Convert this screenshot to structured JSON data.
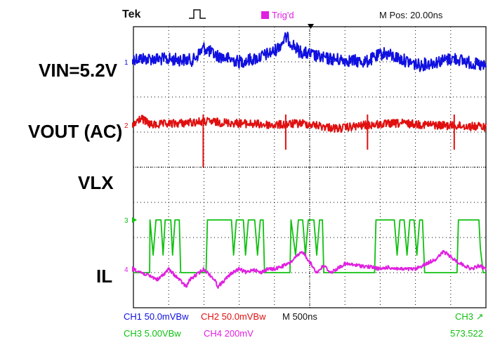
{
  "header": {
    "brand": "Tek",
    "trigger_status": "Trig'd",
    "m_pos": "M Pos: 20.00ns"
  },
  "labels": {
    "vin": "VIN=5.2V",
    "vout": "VOUT (AC)",
    "vlx": "VLX",
    "il": "IL"
  },
  "footer": {
    "ch1": "CH1  50.0mVBw",
    "ch2": "CH2  50.0mVBw",
    "timebase": "M 500ns",
    "trig_src": "CH3 ↗",
    "ch3": "CH3  5.00VBw",
    "ch4": "CH4  200mV",
    "trig_value": "573.522"
  },
  "colors": {
    "ch1": "#1010e0",
    "ch2": "#e01010",
    "ch3": "#10c010",
    "ch4": "#e020e0",
    "grid": "#000000"
  },
  "chart_data": {
    "type": "line",
    "x_unit": "ns",
    "xlim": [
      0,
      5000
    ],
    "grid": true,
    "series": [
      {
        "name": "CH1",
        "color": "#1010e0",
        "baseline_div": -3.0,
        "noise": 0.18,
        "points": [
          [
            0,
            0.1
          ],
          [
            850,
            0.05
          ],
          [
            1000,
            0.4
          ],
          [
            1150,
            0.2
          ],
          [
            1500,
            0.0
          ],
          [
            1750,
            0.1
          ],
          [
            2000,
            0.3
          ],
          [
            2170,
            0.7
          ],
          [
            2350,
            0.3
          ],
          [
            2700,
            0.1
          ],
          [
            3300,
            0.0
          ],
          [
            3550,
            0.25
          ],
          [
            4050,
            -0.1
          ],
          [
            4550,
            0.1
          ],
          [
            5000,
            -0.15
          ]
        ]
      },
      {
        "name": "CH2",
        "color": "#e01010",
        "baseline_div": -1.2,
        "noise": 0.12,
        "points": [
          [
            0,
            0.0
          ],
          [
            100,
            0.2
          ],
          [
            250,
            0.0
          ],
          [
            1000,
            0.1
          ],
          [
            2000,
            0.0
          ],
          [
            2400,
            0.05
          ],
          [
            2900,
            -0.1
          ],
          [
            3300,
            0.0
          ],
          [
            3800,
            0.05
          ],
          [
            4300,
            0.0
          ],
          [
            5000,
            -0.05
          ]
        ],
        "spikes": [
          [
            990,
            -1.2
          ],
          [
            2160,
            -0.7
          ],
          [
            3320,
            -0.7
          ],
          [
            4550,
            -0.7
          ]
        ]
      },
      {
        "name": "CH3",
        "color": "#10c010",
        "baseline_div": 1.5,
        "points": [
          [
            0,
            -1.5
          ],
          [
            230,
            -1.5
          ],
          [
            235,
            0
          ],
          [
            280,
            -1.0
          ],
          [
            320,
            0
          ],
          [
            390,
            0
          ],
          [
            420,
            -1.0
          ],
          [
            450,
            0
          ],
          [
            530,
            0
          ],
          [
            555,
            -1.0
          ],
          [
            590,
            0
          ],
          [
            650,
            0
          ],
          [
            670,
            -1.5
          ],
          [
            1030,
            -1.5
          ],
          [
            1050,
            0
          ],
          [
            1390,
            0
          ],
          [
            1420,
            -1.0
          ],
          [
            1460,
            0
          ],
          [
            1560,
            0
          ],
          [
            1590,
            -1.0
          ],
          [
            1630,
            0
          ],
          [
            1720,
            0
          ],
          [
            1760,
            -1.0
          ],
          [
            1800,
            0
          ],
          [
            1840,
            0
          ],
          [
            1860,
            -1.5
          ],
          [
            2220,
            -1.5
          ],
          [
            2235,
            0
          ],
          [
            2300,
            -1.0
          ],
          [
            2340,
            0
          ],
          [
            2400,
            0
          ],
          [
            2440,
            -1.0
          ],
          [
            2480,
            0
          ],
          [
            2560,
            0
          ],
          [
            2600,
            -1.0
          ],
          [
            2640,
            0
          ],
          [
            2680,
            0
          ],
          [
            2700,
            -1.5
          ],
          [
            3420,
            -1.5
          ],
          [
            3440,
            0
          ],
          [
            3700,
            0
          ],
          [
            3740,
            -1.0
          ],
          [
            3780,
            0
          ],
          [
            3840,
            0
          ],
          [
            3880,
            -1.0
          ],
          [
            3920,
            0
          ],
          [
            3980,
            0
          ],
          [
            4020,
            -1.0
          ],
          [
            4060,
            0
          ],
          [
            4100,
            0
          ],
          [
            4130,
            -1.5
          ],
          [
            4590,
            -1.5
          ],
          [
            4610,
            0
          ],
          [
            4900,
            0
          ],
          [
            4920,
            -0.8
          ],
          [
            4960,
            -1.5
          ],
          [
            5000,
            -1.5
          ]
        ]
      },
      {
        "name": "CH4",
        "color": "#e020e0",
        "baseline_div": 2.9,
        "noise": 0.05,
        "points": [
          [
            0,
            0.0
          ],
          [
            350,
            -0.3
          ],
          [
            500,
            0.0
          ],
          [
            650,
            -0.3
          ],
          [
            750,
            -0.5
          ],
          [
            800,
            -0.3
          ],
          [
            1000,
            0.0
          ],
          [
            1150,
            -0.3
          ],
          [
            1200,
            -0.5
          ],
          [
            1300,
            -0.3
          ],
          [
            1400,
            -0.1
          ],
          [
            1500,
            0.0
          ],
          [
            1600,
            -0.1
          ],
          [
            1700,
            0.0
          ],
          [
            1800,
            -0.1
          ],
          [
            1900,
            0.0
          ],
          [
            2000,
            0.0
          ],
          [
            2200,
            0.15
          ],
          [
            2400,
            0.5
          ],
          [
            2600,
            -0.1
          ],
          [
            2700,
            0.1
          ],
          [
            2800,
            -0.1
          ],
          [
            3000,
            0.15
          ],
          [
            3200,
            0.1
          ],
          [
            3400,
            0.05
          ],
          [
            3500,
            0.0
          ],
          [
            3600,
            0.05
          ],
          [
            3800,
            0.0
          ],
          [
            4000,
            0.0
          ],
          [
            4300,
            0.3
          ],
          [
            4400,
            0.5
          ],
          [
            4600,
            0.2
          ],
          [
            4800,
            0.0
          ],
          [
            4900,
            0.1
          ],
          [
            5000,
            0.0
          ]
        ]
      }
    ]
  }
}
